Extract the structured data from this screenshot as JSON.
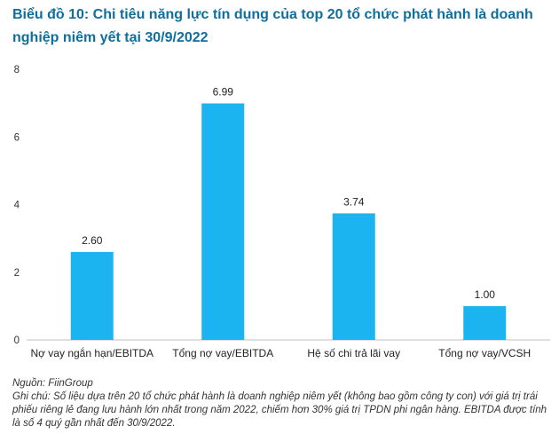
{
  "title": "Biểu đồ 10: Chi tiêu năng lực tín dụng của top 20 tổ chức phát hành là doanh nghiệp niêm yết tại 30/9/2022",
  "source": "Nguồn: FiinGroup",
  "note": "Ghi chú: Số liệu dựa trên 20 tổ chức phát hành là doanh nghiệp niêm yết (không bao gồm công ty con) với giá trị trái phiếu riêng lẻ đang lưu hành lớn nhất trong năm 2022, chiếm hơn 30% giá trị TPDN phi ngân hàng. EBITDA được tính là số 4 quý gần nhất đến 30/9/2022.",
  "chart_data": {
    "type": "bar",
    "categories": [
      "Nợ vay ngắn hạn/EBITDA",
      "Tổng nợ vay/EBITDA",
      "Hệ số chi trả lãi vay",
      "Tổng nợ vay/VCSH"
    ],
    "values": [
      2.6,
      6.99,
      3.74,
      1.0
    ],
    "data_labels": [
      "2.60",
      "6.99",
      "3.74",
      "1.00"
    ],
    "ylim": [
      0,
      8
    ],
    "yticks": [
      0,
      2,
      4,
      6,
      8
    ],
    "grid": false,
    "bar_color": "#1cb4f0"
  }
}
